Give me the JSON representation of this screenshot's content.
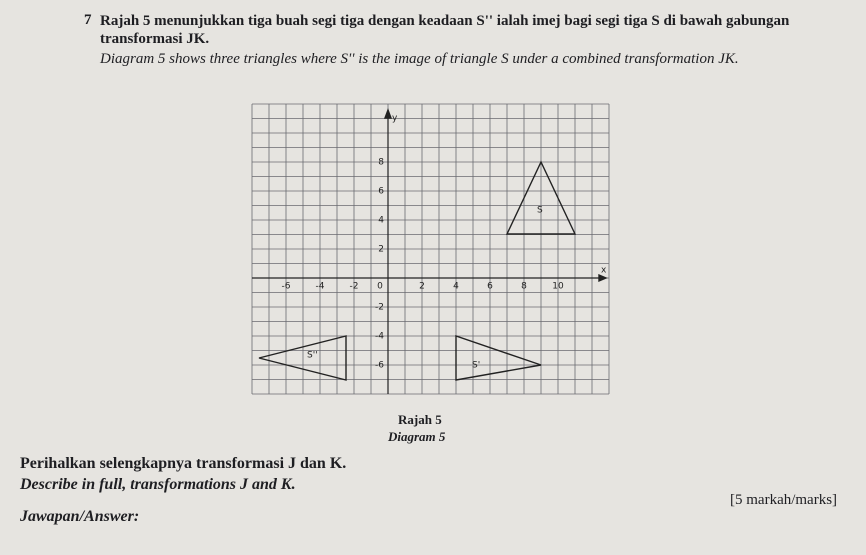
{
  "question": {
    "number": "7",
    "text_ms": "Rajah 5 menunjukkan tiga buah segi tiga dengan keadaan S'' ialah imej bagi segi tiga S di bawah gabungan transformasi JK.",
    "text_en": "Diagram 5 shows three triangles where S'' is the image of triangle S under a combined transformation JK."
  },
  "diagram": {
    "x_label": "x",
    "y_label": "y",
    "xticks": [
      -6,
      -4,
      -2,
      0,
      2,
      4,
      6,
      8,
      10
    ],
    "yticks": [
      8,
      6,
      4,
      2,
      -2,
      -4,
      -6
    ],
    "triangles": [
      "S",
      "S'",
      "S''"
    ],
    "caption_ms": "Rajah 5",
    "caption_en": "Diagram 5"
  },
  "task": {
    "text_ms": "Perihalkan selengkapnya transformasi J dan K.",
    "text_en": "Describe in full, transformations J and K."
  },
  "marks": "[5 markah/marks]",
  "answer_label": "Jawapan/Answer:"
}
